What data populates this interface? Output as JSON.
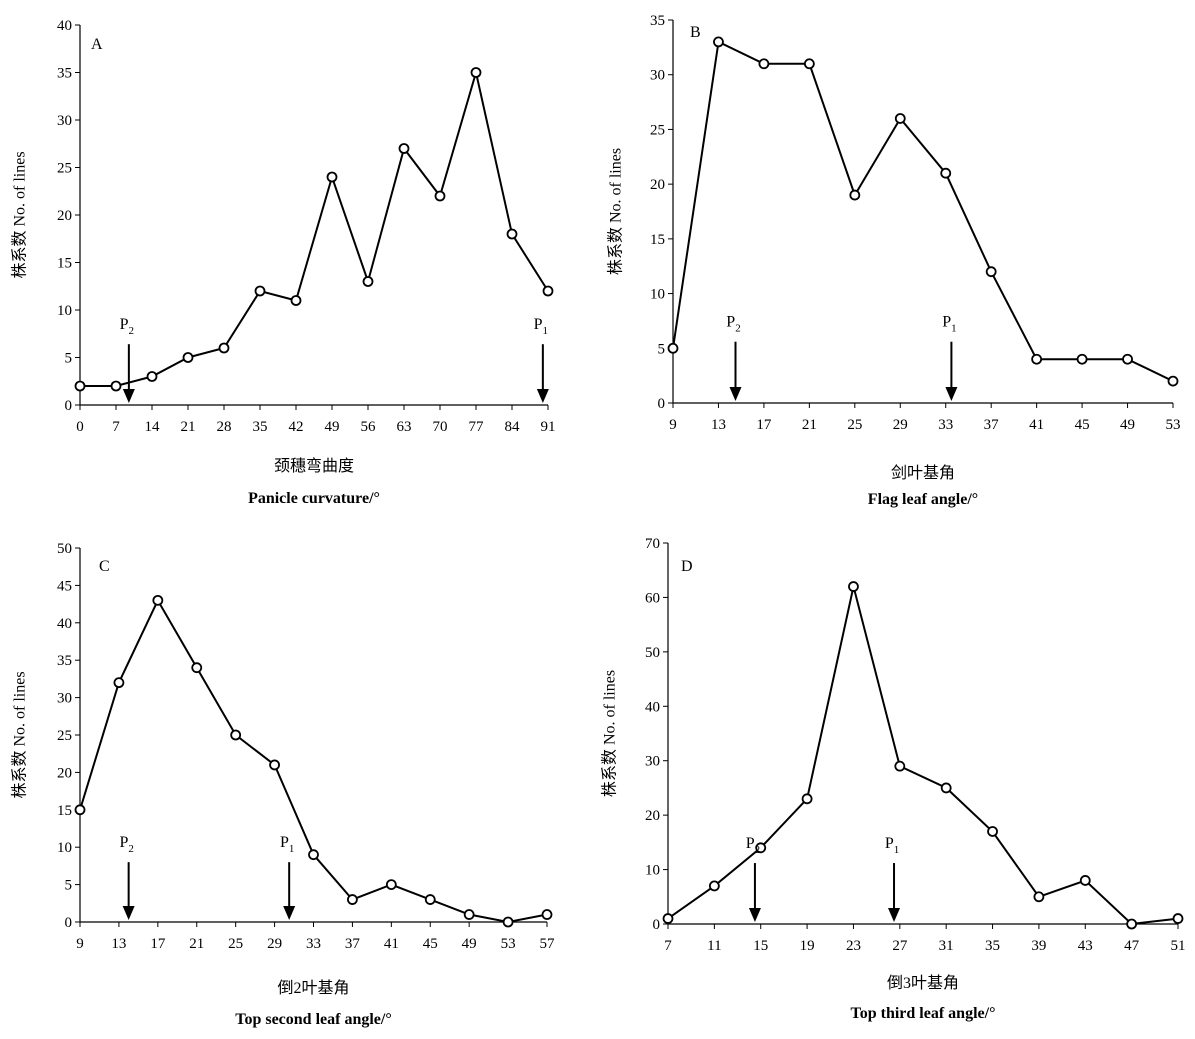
{
  "chart_data": [
    {
      "type": "line",
      "panel": "A",
      "x": [
        0,
        7,
        14,
        21,
        28,
        35,
        42,
        49,
        56,
        63,
        70,
        77,
        84,
        91
      ],
      "series": [
        {
          "values": [
            2,
            2,
            3,
            5,
            6,
            12,
            11,
            24,
            13,
            27,
            22,
            35,
            18,
            12
          ]
        }
      ],
      "xlim": [
        0,
        91
      ],
      "ylim": [
        0,
        40
      ],
      "yticks": [
        0,
        5,
        10,
        15,
        20,
        25,
        30,
        35,
        40
      ],
      "xticks": [
        0,
        7,
        14,
        21,
        28,
        35,
        42,
        49,
        56,
        63,
        70,
        77,
        84,
        91
      ],
      "ylabel": "株系数 No. of lines",
      "xlabel_cn": "颈穗弯曲度",
      "xlabel_en": "Panicle curvature/°",
      "markers": [
        {
          "label": "P",
          "sub": "2",
          "x": 9.5
        },
        {
          "label": "P",
          "sub": "1",
          "x": 90
        }
      ],
      "grid": false
    },
    {
      "type": "line",
      "panel": "B",
      "x": [
        9,
        13,
        17,
        21,
        25,
        29,
        33,
        37,
        41,
        45,
        49,
        53
      ],
      "series": [
        {
          "values": [
            5,
            33,
            31,
            31,
            19,
            26,
            21,
            12,
            4,
            4,
            4,
            2
          ]
        }
      ],
      "xlim": [
        9,
        53
      ],
      "ylim": [
        0,
        35
      ],
      "yticks": [
        0,
        5,
        10,
        15,
        20,
        25,
        30,
        35
      ],
      "xticks": [
        9,
        13,
        17,
        21,
        25,
        29,
        33,
        37,
        41,
        45,
        49,
        53
      ],
      "ylabel": "株系数 No. of lines",
      "xlabel_cn": "剑叶基角",
      "xlabel_en": "Flag leaf angle/°",
      "markers": [
        {
          "label": "P",
          "sub": "2",
          "x": 14.5
        },
        {
          "label": "P",
          "sub": "1",
          "x": 33.5
        }
      ],
      "grid": false
    },
    {
      "type": "line",
      "panel": "C",
      "x": [
        9,
        13,
        17,
        21,
        25,
        29,
        33,
        37,
        41,
        45,
        49,
        53,
        57
      ],
      "series": [
        {
          "values": [
            15,
            32,
            43,
            34,
            25,
            21,
            9,
            3,
            5,
            3,
            1,
            0,
            1
          ]
        }
      ],
      "xlim": [
        9,
        57
      ],
      "ylim": [
        0,
        50
      ],
      "yticks": [
        0,
        5,
        10,
        15,
        20,
        25,
        30,
        35,
        40,
        45,
        50
      ],
      "xticks": [
        9,
        13,
        17,
        21,
        25,
        29,
        33,
        37,
        41,
        45,
        49,
        53,
        57
      ],
      "ylabel": "株系数 No. of lines",
      "xlabel_cn": "倒2叶基角",
      "xlabel_en": "Top second leaf angle/°",
      "markers": [
        {
          "label": "P",
          "sub": "2",
          "x": 14
        },
        {
          "label": "P",
          "sub": "1",
          "x": 30.5
        }
      ],
      "grid": false
    },
    {
      "type": "line",
      "panel": "D",
      "x": [
        7,
        11,
        15,
        19,
        23,
        27,
        31,
        35,
        39,
        43,
        47,
        51
      ],
      "series": [
        {
          "values": [
            1,
            7,
            14,
            23,
            62,
            29,
            25,
            17,
            5,
            8,
            0,
            1
          ]
        }
      ],
      "xlim": [
        7,
        51
      ],
      "ylim": [
        0,
        70
      ],
      "yticks": [
        0,
        10,
        20,
        30,
        40,
        50,
        60,
        70
      ],
      "xticks": [
        7,
        11,
        15,
        19,
        23,
        27,
        31,
        35,
        39,
        43,
        47,
        51
      ],
      "ylabel": "株系数 No. of lines",
      "xlabel_cn": "倒3叶基角",
      "xlabel_en": "Top third leaf angle/°",
      "markers": [
        {
          "label": "P",
          "sub": "2",
          "x": 14.5
        },
        {
          "label": "P",
          "sub": "1",
          "x": 26.5
        }
      ],
      "grid": false
    }
  ]
}
